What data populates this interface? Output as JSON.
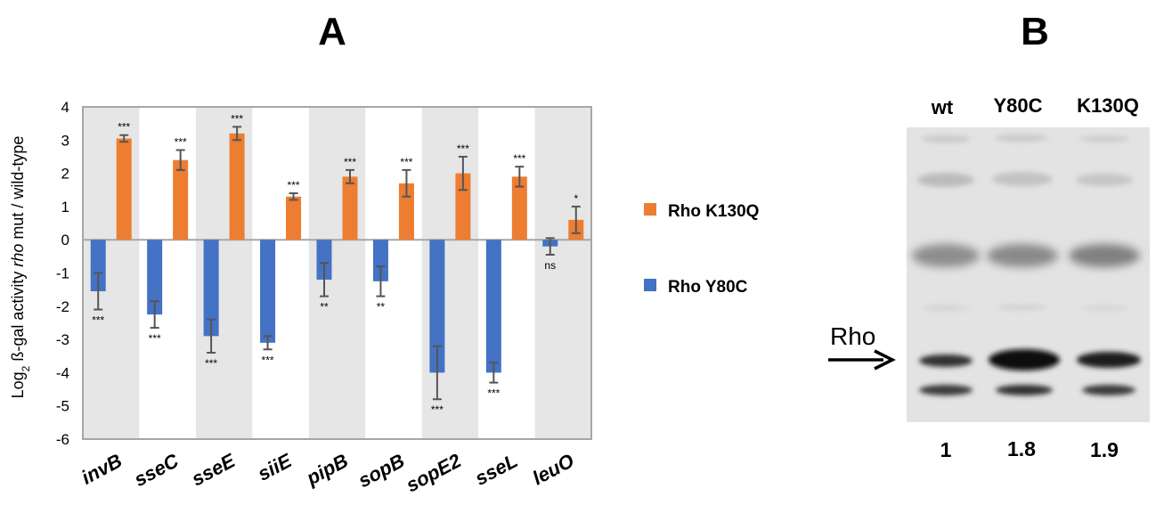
{
  "panels": {
    "a_label": "A",
    "b_label": "B"
  },
  "chart_data": {
    "type": "bar",
    "title": "",
    "ylabel_parts": [
      "Log",
      "2",
      " ß-gal activity ",
      "rho",
      " mut / wild-type"
    ],
    "ylim": [
      -6,
      4
    ],
    "yticks": [
      4,
      3,
      2,
      1,
      0,
      -1,
      -2,
      -3,
      -4,
      -5,
      -6
    ],
    "categories": [
      "invB",
      "sseC",
      "sseE",
      "siiE",
      "pipB",
      "sopB",
      "sopE2",
      "sseL",
      "leuO"
    ],
    "shaded_categories": [
      0,
      2,
      4,
      6,
      8
    ],
    "grid": false,
    "legend_position": "right",
    "series": [
      {
        "name": "Rho K130Q",
        "color": "#ED7D31",
        "values": [
          3.05,
          2.4,
          3.2,
          1.3,
          1.9,
          1.7,
          2.0,
          1.9,
          0.6
        ],
        "errors": [
          0.1,
          0.3,
          0.2,
          0.1,
          0.2,
          0.4,
          0.5,
          0.3,
          0.4
        ],
        "significance": [
          "***",
          "***",
          "***",
          "***",
          "***",
          "***",
          "***",
          "***",
          "*"
        ]
      },
      {
        "name": "Rho Y80C",
        "color": "#4472C4",
        "values": [
          -1.55,
          -2.25,
          -2.9,
          -3.1,
          -1.2,
          -1.25,
          -4.0,
          -4.0,
          -0.2
        ],
        "errors": [
          0.55,
          0.4,
          0.5,
          0.2,
          0.5,
          0.45,
          0.8,
          0.3,
          0.25
        ],
        "significance": [
          "***",
          "***",
          "***",
          "***",
          "**",
          "**",
          "***",
          "***",
          "ns"
        ]
      }
    ]
  },
  "blot": {
    "lanes": [
      "wt",
      "Y80C",
      "K130Q"
    ],
    "arrow_label": "Rho",
    "quantification": [
      "1",
      "1.8",
      "1.9"
    ]
  }
}
